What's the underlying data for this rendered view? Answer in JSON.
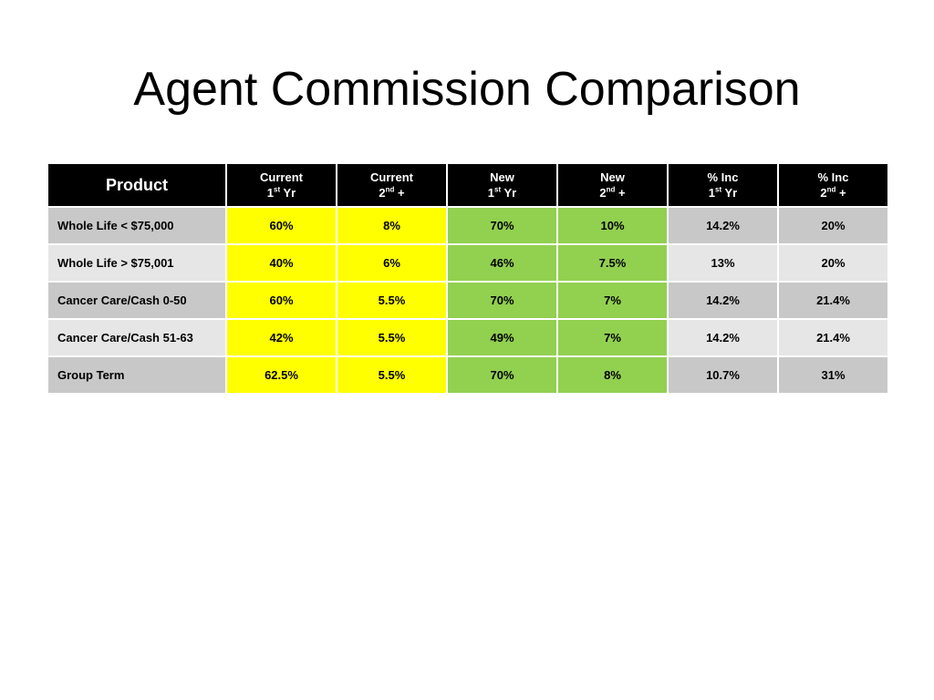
{
  "title": "Agent Commission Comparison",
  "table": {
    "headers": [
      {
        "line1": "Product"
      },
      {
        "line1": "Current",
        "num": "1",
        "sup": "st",
        "suffix": " Yr"
      },
      {
        "line1": "Current",
        "num": "2",
        "sup": "nd",
        "suffix": " +"
      },
      {
        "line1": "New",
        "num": "1",
        "sup": "st",
        "suffix": " Yr"
      },
      {
        "line1": "New",
        "num": "2",
        "sup": "nd",
        "suffix": " +"
      },
      {
        "line1": "% Inc",
        "num": "1",
        "sup": "st",
        "suffix": " Yr"
      },
      {
        "line1": "% Inc",
        "num": "2",
        "sup": "nd",
        "suffix": " +"
      }
    ],
    "rows": [
      {
        "product": "Whole Life < $75,000",
        "current_1st": "60%",
        "current_2nd": "8%",
        "new_1st": "70%",
        "new_2nd": "10%",
        "inc_1st": "14.2%",
        "inc_2nd": "20%"
      },
      {
        "product": "Whole Life > $75,001",
        "current_1st": "40%",
        "current_2nd": "6%",
        "new_1st": "46%",
        "new_2nd": "7.5%",
        "inc_1st": "13%",
        "inc_2nd": "20%"
      },
      {
        "product": "Cancer Care/Cash 0-50",
        "current_1st": "60%",
        "current_2nd": "5.5%",
        "new_1st": "70%",
        "new_2nd": "7%",
        "inc_1st": "14.2%",
        "inc_2nd": "21.4%"
      },
      {
        "product": "Cancer Care/Cash 51-63",
        "current_1st": "42%",
        "current_2nd": "5.5%",
        "new_1st": "49%",
        "new_2nd": "7%",
        "inc_1st": "14.2%",
        "inc_2nd": "21.4%"
      },
      {
        "product": "Group Term",
        "current_1st": "62.5%",
        "current_2nd": "5.5%",
        "new_1st": "70%",
        "new_2nd": "8%",
        "inc_1st": "10.7%",
        "inc_2nd": "31%"
      }
    ]
  },
  "colors": {
    "header_bg": "#000000",
    "current_bg": "#ffff00",
    "new_bg": "#92d050",
    "row_dark": "#c8c8c8",
    "row_light": "#e6e6e6"
  }
}
